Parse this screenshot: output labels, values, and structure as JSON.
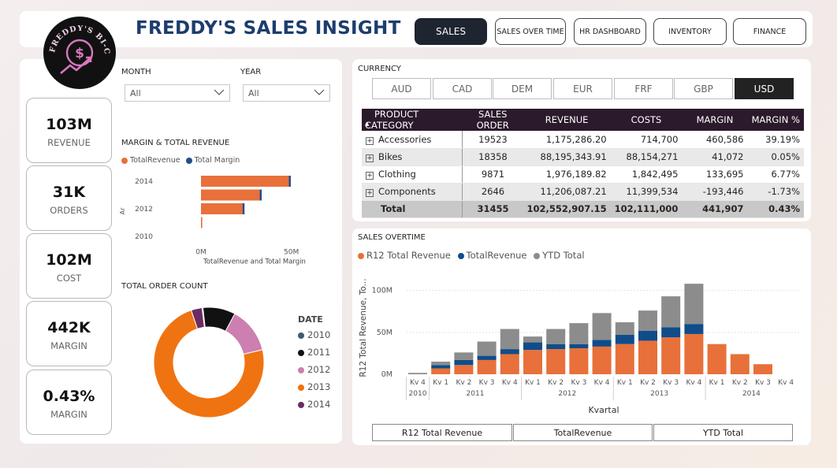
{
  "header": {
    "title": "FREDDY'S SALES INSIGHT",
    "logo_text": "FREDDY'S BI-CYCLE",
    "nav": [
      {
        "label": "SALES",
        "active": true
      },
      {
        "label": "SALES OVER TIME",
        "active": false
      },
      {
        "label": "HR DASHBOARD",
        "active": false
      },
      {
        "label": "INVENTORY",
        "active": false
      },
      {
        "label": "FINANCE",
        "active": false
      }
    ]
  },
  "kpis": [
    {
      "value": "103M",
      "label": "REVENUE"
    },
    {
      "value": "31K",
      "label": "ORDERS"
    },
    {
      "value": "102M",
      "label": "COST"
    },
    {
      "value": "442K",
      "label": "MARGIN"
    },
    {
      "value": "0.43%",
      "label": "MARGIN"
    }
  ],
  "filters": {
    "month": {
      "label": "MONTH",
      "value": "All"
    },
    "year": {
      "label": "YEAR",
      "value": "All"
    }
  },
  "currency": {
    "label": "CURRENCY",
    "options": [
      "AUD",
      "CAD",
      "DEM",
      "EUR",
      "FRF",
      "GBP",
      "USD"
    ],
    "selected": "USD"
  },
  "matrix": {
    "headers": [
      "PRODUCT CATEGORY",
      "SALES ORDER",
      "REVENUE",
      "COSTS",
      "MARGIN",
      "MARGIN %"
    ],
    "rows": [
      [
        "Accessories",
        "19523",
        "1,175,286.20",
        "714,700",
        "460,586",
        "39.19%"
      ],
      [
        "Bikes",
        "18358",
        "88,195,343.91",
        "88,154,271",
        "41,072",
        "0.05%"
      ],
      [
        "Clothing",
        "9871",
        "1,976,189.82",
        "1,842,495",
        "133,695",
        "6.77%"
      ],
      [
        "Components",
        "2646",
        "11,206,087.21",
        "11,399,534",
        "-193,446",
        "-1.73%"
      ]
    ],
    "total": [
      "Total",
      "31455",
      "102,552,907.15",
      "102,111,000",
      "441,907",
      "0.43%"
    ]
  },
  "chart_data": [
    {
      "type": "bar",
      "orientation": "horizontal",
      "title": "MARGIN & TOTAL REVENUE",
      "xlabel": "TotalRevenue and Total Margin",
      "ylabel": "Ar",
      "categories": [
        2014,
        2013,
        2012,
        2011,
        2010
      ],
      "y_tick_labels": [
        "2014",
        "2012",
        "2010"
      ],
      "x_tick_labels": [
        "0M",
        "50M"
      ],
      "xlim": [
        0,
        58
      ],
      "series": [
        {
          "name": "TotalRevenue",
          "color": "#e8703a",
          "values": [
            49.6,
            33.5,
            24,
            0.7,
            0
          ]
        },
        {
          "name": "Total Margin",
          "color": "#1f4e8c",
          "values": [
            1.0,
            0.3,
            0.25,
            0,
            0
          ]
        }
      ],
      "legend": "top-left"
    },
    {
      "type": "pie",
      "title": "TOTAL ORDER COUNT",
      "legend_title": "DATE",
      "labels": [
        "2010",
        "2011",
        "2012",
        "2013",
        "2014"
      ],
      "colors": [
        "#3f5a73",
        "#111111",
        "#cc7fb0",
        "#f07311",
        "#6b2c63"
      ],
      "values": [
        0.3,
        9.5,
        13.5,
        73.5,
        3.2
      ],
      "donut": true
    },
    {
      "type": "bar",
      "stacked": true,
      "title": "SALES OVERTIME",
      "xlabel": "Kvartal",
      "ylabel": "R12 Total Revenue, To...",
      "y_tick_labels": [
        "0M",
        "50M",
        "100M"
      ],
      "ylim": [
        0,
        110
      ],
      "categories": [
        "Kv 4",
        "Kv 1",
        "Kv 2",
        "Kv 3",
        "Kv 4",
        "Kv 1",
        "Kv 2",
        "Kv 3",
        "Kv 4",
        "Kv 1",
        "Kv 2",
        "Kv 3",
        "Kv 4",
        "Kv 1",
        "Kv 2",
        "Kv 3",
        "Kv 4"
      ],
      "year_groups": [
        {
          "label": "2010",
          "start": 0,
          "end": 0
        },
        {
          "label": "2011",
          "start": 1,
          "end": 4
        },
        {
          "label": "2012",
          "start": 5,
          "end": 8
        },
        {
          "label": "2013",
          "start": 9,
          "end": 12
        },
        {
          "label": "2014",
          "start": 13,
          "end": 16
        }
      ],
      "series": [
        {
          "name": "R12 Total Revenue",
          "color": "#e8703a",
          "values": [
            0.4,
            7,
            11,
            17,
            24,
            29,
            30,
            31,
            33,
            36,
            40,
            44,
            48,
            36,
            24,
            12,
            0
          ]
        },
        {
          "name": "TotalRevenue",
          "color": "#0f4d8a",
          "values": [
            0.4,
            4,
            6,
            5,
            6,
            9,
            6,
            5,
            8,
            11,
            12,
            12,
            12,
            0,
            0,
            0,
            0
          ]
        },
        {
          "name": "YTD Total",
          "color": "#8c8c8c",
          "values": [
            0.8,
            4,
            9,
            17,
            24,
            7,
            18,
            25,
            32,
            15,
            24,
            37,
            48,
            0,
            0,
            0,
            0
          ]
        }
      ],
      "legend": "top-left"
    }
  ],
  "sales_overtime": {
    "bottom_buttons": [
      "R12 Total Revenue",
      "TotalRevenue",
      "YTD Total"
    ]
  }
}
